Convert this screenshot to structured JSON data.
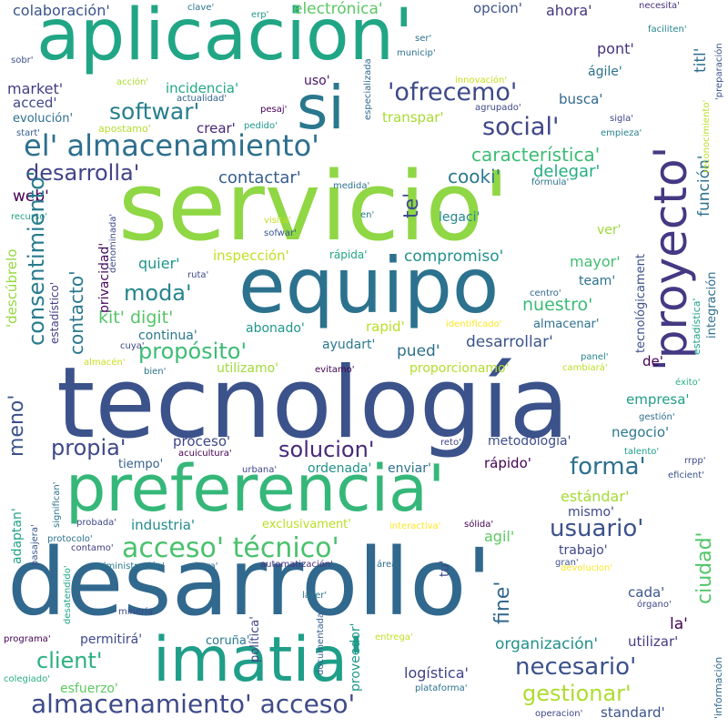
{
  "words": [
    {
      "text": "aplicacion'",
      "color": "#21a685"
    },
    {
      "text": "servicio'",
      "color": "#8fd744"
    },
    {
      "text": "tecnología",
      "color": "#3b528b"
    },
    {
      "text": "desarrollo'",
      "color": "#31688e"
    },
    {
      "text": "equipo",
      "color": "#2c728e"
    },
    {
      "text": "preferencia'",
      "color": "#35b779"
    },
    {
      "text": "'proyecto'",
      "color": "#443983"
    },
    {
      "text": "imatia'",
      "color": "#1f9e89"
    },
    {
      "text": "si",
      "color": "#2a788e"
    },
    {
      "text": "el' almacenamiento'",
      "color": "#2e6f8e"
    },
    {
      "text": "almacenamiento' acceso'",
      "color": "#3e4a89"
    },
    {
      "text": "acceso' técnico'",
      "color": "#4ac16d"
    },
    {
      "text": "'ofrecemo'",
      "color": "#3e4989"
    },
    {
      "text": "softwar'",
      "color": "#277f8e"
    },
    {
      "text": "social'",
      "color": "#3f4788"
    },
    {
      "text": "desarrolla'",
      "color": "#404387"
    },
    {
      "text": "característica'",
      "color": "#3dbc74"
    },
    {
      "text": "contactar'",
      "color": "#365d8d"
    },
    {
      "text": "cooki'",
      "color": "#2a788e"
    },
    {
      "text": "delegar'",
      "color": "#26ad81"
    },
    {
      "text": "colaboración'",
      "color": "#3a548c"
    },
    {
      "text": "electrónica'",
      "color": "#5ac864"
    },
    {
      "text": "opcion'",
      "color": "#3b528b"
    },
    {
      "text": "ahora'",
      "color": "#453781"
    },
    {
      "text": "necesita'",
      "color": "#46327e"
    },
    {
      "text": "clave'",
      "color": "#2a768e"
    },
    {
      "text": "erp'",
      "color": "#1f988b"
    },
    {
      "text": "titl'",
      "color": "#2f6c8e"
    },
    {
      "text": "faciliten'",
      "color": "#24868e"
    },
    {
      "text": "'preparación",
      "color": "#3a548c"
    },
    {
      "text": "pont'",
      "color": "#46307e"
    },
    {
      "text": "ágile'",
      "color": "#2c728e"
    },
    {
      "text": "market'",
      "color": "#433d84"
    },
    {
      "text": "acced'",
      "color": "#3f4889"
    },
    {
      "text": "evolución'",
      "color": "#2d708e"
    },
    {
      "text": "start'",
      "color": "#365c8d"
    },
    {
      "text": "incidencia'",
      "color": "#22a884"
    },
    {
      "text": "actualidad'",
      "color": "#33638d"
    },
    {
      "text": "uso'",
      "color": "#471365"
    },
    {
      "text": "busca'",
      "color": "#31688e"
    },
    {
      "text": "transpar'",
      "color": "#a8db34"
    },
    {
      "text": "crear'",
      "color": "#482576"
    },
    {
      "text": "pesaj'",
      "color": "#440154"
    },
    {
      "text": "pedido'",
      "color": "#1f9a8a"
    },
    {
      "text": "apostamo'",
      "color": "#b5de2b"
    },
    {
      "text": "sigla'",
      "color": "#3f4788"
    },
    {
      "text": "empieza'",
      "color": "#25838e"
    },
    {
      "text": "función'",
      "color": "#2d718e"
    },
    {
      "text": "web'",
      "color": "#440154"
    },
    {
      "text": "te'",
      "color": "#3d4e8a"
    },
    {
      "text": "recurso'",
      "color": "#20a386"
    },
    {
      "text": "en'",
      "color": "#29798e"
    },
    {
      "text": "legaci'",
      "color": "#24878e"
    },
    {
      "text": "ver'",
      "color": "#9dd93b"
    },
    {
      "text": "medida'",
      "color": "#2c728e"
    },
    {
      "text": "fórmula'",
      "color": "#2c718e"
    },
    {
      "text": "visita'",
      "color": "#c2df23"
    },
    {
      "text": "sofwar'",
      "color": "#39568c"
    },
    {
      "text": "denominada'",
      "color": "#3f4889"
    },
    {
      "text": "consentimiento'",
      "color": "#287c8e"
    },
    {
      "text": "contacto'",
      "color": "#2a788e"
    },
    {
      "text": "quier'",
      "color": "#1f958b"
    },
    {
      "text": "privacidad'",
      "color": "#46085c"
    },
    {
      "text": "inspección'",
      "color": "#c2df23"
    },
    {
      "text": "rápida'",
      "color": "#22a785"
    },
    {
      "text": "compromiso'",
      "color": "#21918c"
    },
    {
      "text": "mayor'",
      "color": "#42be71"
    },
    {
      "text": "moda'",
      "color": "#25848e"
    },
    {
      "text": "ruta'",
      "color": "#3e4989"
    },
    {
      "text": "team'",
      "color": "#2c728e"
    },
    {
      "text": "kit' digit'",
      "color": "#54c568"
    },
    {
      "text": "nuestro'",
      "color": "#3bbb75"
    },
    {
      "text": "tecnológicament",
      "color": "#3c4f8a"
    },
    {
      "text": "estadística'",
      "color": "#1fa088"
    },
    {
      "text": "integración",
      "color": "#2e6e8e"
    },
    {
      "text": "centro'",
      "color": "#31688e"
    },
    {
      "text": "'descúbrelo",
      "color": "#95d840"
    },
    {
      "text": "estadístico'",
      "color": "#433e85"
    },
    {
      "text": "abonado'",
      "color": "#1f958b"
    },
    {
      "text": "rapid'",
      "color": "#bade28"
    },
    {
      "text": "identificado'",
      "color": "#fde725"
    },
    {
      "text": "almacenar'",
      "color": "#2d718e"
    },
    {
      "text": "continua'",
      "color": "#2a788e"
    },
    {
      "text": "propósito'",
      "color": "#3dbc74"
    },
    {
      "text": "ayudart'",
      "color": "#2a788e"
    },
    {
      "text": "desarrollar'",
      "color": "#3a548c"
    },
    {
      "text": "cuya'",
      "color": "#3e4989"
    },
    {
      "text": "pued'",
      "color": "#2d708e"
    },
    {
      "text": "de'",
      "color": "#440154"
    },
    {
      "text": "panel'",
      "color": "#25848e"
    },
    {
      "text": "almacén'",
      "color": "#c8e020"
    },
    {
      "text": "utilizamo'",
      "color": "#a0da39"
    },
    {
      "text": "evitamo'",
      "color": "#440154"
    },
    {
      "text": "bien'",
      "color": "#2c738e"
    },
    {
      "text": "cambiará'",
      "color": "#bade28"
    },
    {
      "text": "proporcionamo'",
      "color": "#b2dd2d"
    },
    {
      "text": "éxito'",
      "color": "#2ab07f"
    },
    {
      "text": "meno'",
      "color": "#3b528b"
    },
    {
      "text": "empresa'",
      "color": "#1f9e89"
    },
    {
      "text": "gestión'",
      "color": "#2e6e8e"
    },
    {
      "text": "propia'",
      "color": "#3e4989"
    },
    {
      "text": "solucion'",
      "color": "#482878"
    },
    {
      "text": "proceso'",
      "color": "#3f4788"
    },
    {
      "text": "acuicultura'",
      "color": "#440154"
    },
    {
      "text": "negocio'",
      "color": "#2a788e"
    },
    {
      "text": "metodología'",
      "color": "#3d4e8a"
    },
    {
      "text": "reto'",
      "color": "#404387"
    },
    {
      "text": "talento'",
      "color": "#1fa088"
    },
    {
      "text": "rrpp'",
      "color": "#3e4989"
    },
    {
      "text": "tiempo'",
      "color": "#35608d"
    },
    {
      "text": "urbana'",
      "color": "#3f4788"
    },
    {
      "text": "ordenada'",
      "color": "#21918c"
    },
    {
      "text": "enviar'",
      "color": "#2d708e"
    },
    {
      "text": "rápido'",
      "color": "#440154"
    },
    {
      "text": "forma'",
      "color": "#2d708e"
    },
    {
      "text": "eficient'",
      "color": "#3b528b"
    },
    {
      "text": "ciudad'",
      "color": "#52c569"
    },
    {
      "text": "estándar'",
      "color": "#a5db36"
    },
    {
      "text": "mismo'",
      "color": "#3f4788"
    },
    {
      "text": "usuario'",
      "color": "#3b528b"
    },
    {
      "text": "industria'",
      "color": "#228c8d"
    },
    {
      "text": "significan'",
      "color": "#2c738e"
    },
    {
      "text": "exclusivament'",
      "color": "#bade28"
    },
    {
      "text": "interactiva'",
      "color": "#fde725"
    },
    {
      "text": "sólida'",
      "color": "#440154"
    },
    {
      "text": "agil'",
      "color": "#5ec962"
    },
    {
      "text": "adaptan'",
      "color": "#20a386"
    },
    {
      "text": "pasajera'",
      "color": "#3a548c"
    },
    {
      "text": "probada'",
      "color": "#3e4989"
    },
    {
      "text": "protocolo'",
      "color": "#2c728e"
    },
    {
      "text": "contamo'",
      "color": "#433e85"
    },
    {
      "text": "trabajo'",
      "color": "#3f4788"
    },
    {
      "text": "fine'",
      "color": "#31688e"
    },
    {
      "text": "tu'",
      "color": "#3e4989"
    },
    {
      "text": "gran'",
      "color": "#3b528b"
    },
    {
      "text": "desatendido'",
      "color": "#20a386"
    },
    {
      "text": "administración'",
      "color": "#2a788e"
    },
    {
      "text": "hora'",
      "color": "#2d708e"
    },
    {
      "text": "automatización'",
      "color": "#46337e"
    },
    {
      "text": "área'",
      "color": "#2d718e"
    },
    {
      "text": "devolucion'",
      "color": "#fde725"
    },
    {
      "text": "cada'",
      "color": "#39568c"
    },
    {
      "text": "órgano'",
      "color": "#3e4989"
    },
    {
      "text": "láser'",
      "color": "#2a788e"
    },
    {
      "text": "la'",
      "color": "#440154"
    },
    {
      "text": "minería'",
      "color": "#3e4989"
    },
    {
      "text": "política'",
      "color": "#3f4788"
    },
    {
      "text": "documentada'",
      "color": "#355f8d"
    },
    {
      "text": "proveedor'",
      "color": "#1f988b"
    },
    {
      "text": "permitirá'",
      "color": "#3e4989"
    },
    {
      "text": "coruña'",
      "color": "#2a788e"
    },
    {
      "text": "programa'",
      "color": "#440154"
    },
    {
      "text": "entrega'",
      "color": "#c2df23"
    },
    {
      "text": "organización'",
      "color": "#21918c"
    },
    {
      "text": "utilizar'",
      "color": "#443b84"
    },
    {
      "text": "colegiado'",
      "color": "#28ae80"
    },
    {
      "text": "client'",
      "color": "#2ab07f"
    },
    {
      "text": "esfuerzo'",
      "color": "#5ec962"
    },
    {
      "text": "logística'",
      "color": "#404387"
    },
    {
      "text": "necesario'",
      "color": "#3b528b"
    },
    {
      "text": "plataforma'",
      "color": "#2d718e"
    },
    {
      "text": "operacion'",
      "color": "#3f4788"
    },
    {
      "text": "gestionar'",
      "color": "#addc30"
    },
    {
      "text": "standard'",
      "color": "#3b528b"
    },
    {
      "text": "'información",
      "color": "#31688e"
    },
    {
      "text": "innovación'",
      "color": "#c8e020"
    },
    {
      "text": "agrupado'",
      "color": "#3f4788"
    },
    {
      "text": "reconocimiento'",
      "color": "#bade28"
    },
    {
      "text": "ser'",
      "color": "#2c728e"
    },
    {
      "text": "municip'",
      "color": "#2c728e"
    },
    {
      "text": "especializada",
      "color": "#31688e"
    },
    {
      "text": "acción'",
      "color": "#addc30"
    },
    {
      "text": "sobr'",
      "color": "#3b528b"
    }
  ]
}
